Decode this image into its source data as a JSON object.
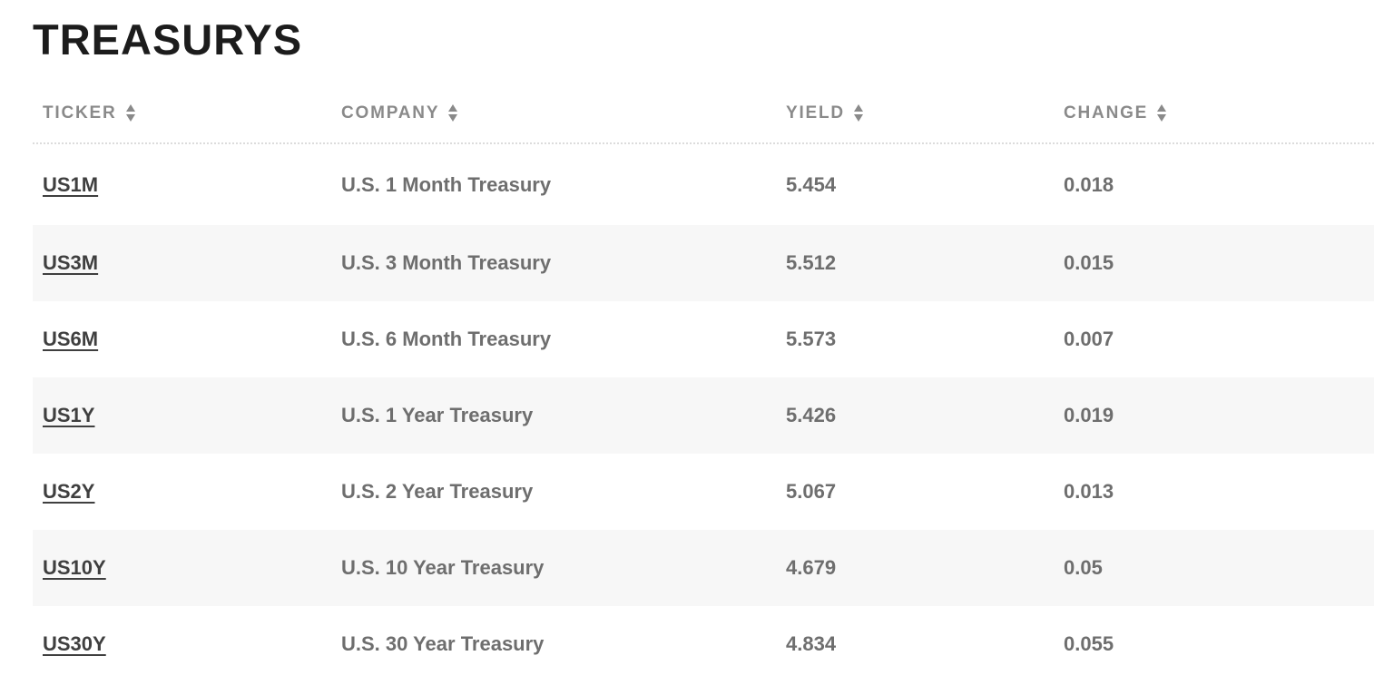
{
  "page": {
    "title": "TREASURYS"
  },
  "table": {
    "columns": [
      {
        "id": "ticker",
        "label": "TICKER",
        "sortable": true
      },
      {
        "id": "company",
        "label": "COMPANY",
        "sortable": true
      },
      {
        "id": "yield",
        "label": "YIELD",
        "sortable": true
      },
      {
        "id": "change",
        "label": "CHANGE",
        "sortable": true
      }
    ],
    "rows": [
      {
        "ticker": "US1M",
        "company": "U.S. 1 Month Treasury",
        "yield": "5.454",
        "change": "0.018"
      },
      {
        "ticker": "US3M",
        "company": "U.S. 3 Month Treasury",
        "yield": "5.512",
        "change": "0.015"
      },
      {
        "ticker": "US6M",
        "company": "U.S. 6 Month Treasury",
        "yield": "5.573",
        "change": "0.007"
      },
      {
        "ticker": "US1Y",
        "company": "U.S. 1 Year Treasury",
        "yield": "5.426",
        "change": "0.019"
      },
      {
        "ticker": "US2Y",
        "company": "U.S. 2 Year Treasury",
        "yield": "5.067",
        "change": "0.013"
      },
      {
        "ticker": "US10Y",
        "company": "U.S. 10 Year Treasury",
        "yield": "4.679",
        "change": "0.05"
      },
      {
        "ticker": "US30Y",
        "company": "U.S. 30 Year Treasury",
        "yield": "4.834",
        "change": "0.055"
      }
    ]
  },
  "icons": {
    "column_sort": "sort-arrows-icon"
  },
  "colors": {
    "background": "#ffffff",
    "title_text": "#1c1c1c",
    "header_text": "#8a8a8a",
    "ticker_link": "#3f3f3f",
    "body_text": "#6e6e6e",
    "row_stripe": "#f7f7f7",
    "divider": "#dcdcdc"
  }
}
